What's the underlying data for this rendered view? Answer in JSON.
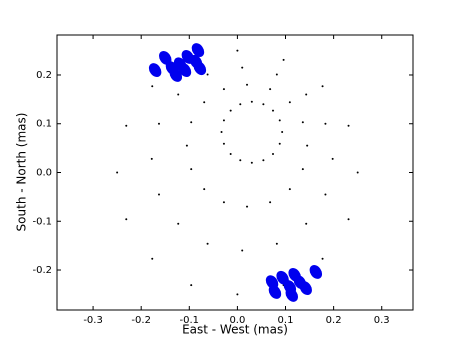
{
  "chart_data": {
    "type": "scatter",
    "xlabel": "East - West (mas)",
    "ylabel": "South - North (mas)",
    "xlim": [
      -0.375,
      0.365
    ],
    "ylim": [
      -0.282,
      0.282
    ],
    "xticks": [
      -0.3,
      -0.2,
      -0.1,
      {
        "value": 0,
        "label": "0.0"
      },
      0.1,
      0.2,
      0.3
    ],
    "yticks": [
      -0.2,
      -0.1,
      {
        "value": 0,
        "label": "0.0"
      },
      0.1,
      0.2
    ],
    "series": [
      {
        "color": "#000000",
        "marker": "dot",
        "x": [
          0.093,
          0.145,
          0.198,
          0.25,
          0.088,
          0.136,
          0.183,
          0.231,
          0.074,
          0.109,
          0.143,
          0.177,
          0.054,
          0.068,
          0.082,
          0.096,
          0.03,
          0.02,
          0.01,
          0,
          0.006,
          -0.028,
          -0.062,
          -0.096,
          -0.014,
          -0.069,
          -0.123,
          -0.177,
          -0.028,
          -0.096,
          -0.163,
          -0.231,
          -0.033,
          -0.105,
          -0.178,
          -0.25,
          -0.028,
          -0.096,
          -0.163,
          -0.231,
          -0.014,
          -0.069,
          -0.123,
          -0.177,
          0.006,
          -0.028,
          -0.062,
          -0.096,
          0.03,
          0.02,
          0.01,
          0,
          0.054,
          0.068,
          0.082,
          0.096,
          0.074,
          0.109,
          0.143,
          0.177,
          0.088,
          0.136,
          0.183,
          0.231
        ],
        "values": [
          0.083,
          0.055,
          0.028,
          0,
          0.107,
          0.103,
          0.1,
          0.096,
          0.127,
          0.144,
          0.16,
          0.177,
          0.14,
          0.171,
          0.201,
          0.231,
          0.145,
          0.18,
          0.215,
          0.25,
          0.14,
          0.171,
          0.201,
          0.231,
          0.127,
          0.144,
          0.16,
          0.177,
          0.107,
          0.103,
          0.1,
          0.096,
          0.083,
          0.055,
          0.028,
          0,
          0.059,
          0.007,
          -0.045,
          -0.096,
          0.038,
          -0.034,
          -0.105,
          -0.177,
          0.025,
          -0.061,
          -0.146,
          -0.231,
          0.02,
          -0.07,
          -0.16,
          -0.25,
          0.025,
          -0.061,
          -0.146,
          -0.231,
          0.038,
          -0.034,
          -0.105,
          -0.177,
          0.059,
          0.007,
          -0.045,
          -0.096
        ]
      },
      {
        "color": "#0000ee",
        "marker": "ellipse",
        "x": [
          -0.171,
          -0.15,
          -0.136,
          -0.119,
          -0.109,
          -0.103,
          -0.086,
          -0.082,
          -0.078,
          -0.128,
          0.072,
          0.078,
          0.094,
          0.109,
          0.119,
          0.13,
          0.142,
          0.163,
          0.113
        ],
        "values": [
          0.21,
          0.235,
          0.214,
          0.222,
          0.21,
          0.237,
          0.227,
          0.251,
          0.214,
          0.2,
          -0.225,
          -0.245,
          -0.216,
          -0.235,
          -0.21,
          -0.225,
          -0.237,
          -0.204,
          -0.251
        ]
      }
    ]
  }
}
